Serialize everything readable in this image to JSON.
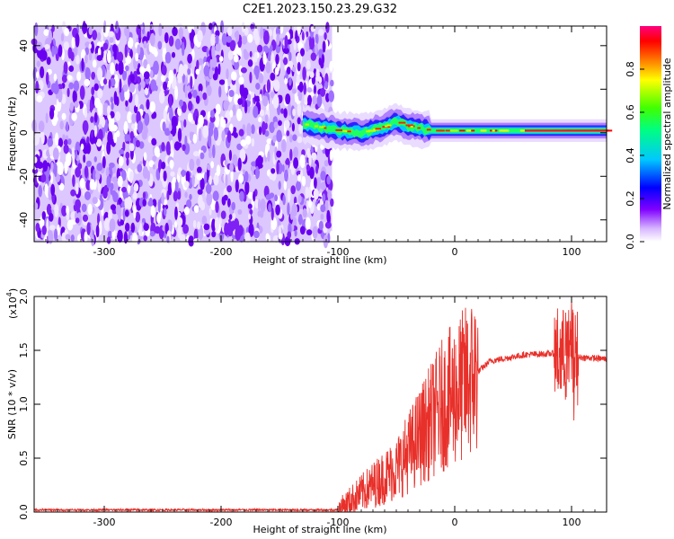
{
  "title": "C2E1.2023.150.23.29.G32",
  "colors": {
    "snr_line": "#e8302a",
    "noise_purple": "#6a00f0",
    "colorbar": [
      "#ffffff",
      "#8000ff",
      "#0000ff",
      "#00c8ff",
      "#00ff60",
      "#c8ff00",
      "#ff0000",
      "#ff0080"
    ]
  },
  "chart_data": [
    {
      "type": "heatmap",
      "name": "spectrogram",
      "xlabel": "Height of straight line (km)",
      "ylabel": "Frequency (Hz)",
      "xlim": [
        -360,
        130
      ],
      "ylim": [
        -50,
        49
      ],
      "xticks": [
        -300,
        -200,
        -100,
        0,
        100
      ],
      "yticks": [
        -40,
        -20,
        0,
        20,
        40
      ],
      "xtick_labels": [
        "-300",
        "-200",
        "-100",
        "0",
        "100"
      ],
      "ytick_labels": [
        "-40",
        "-20",
        "0",
        "20",
        "40"
      ],
      "noise_region_x": [
        -360,
        -105
      ],
      "signal_start_x": -130,
      "signal_path": [
        {
          "x": -130,
          "y": 4
        },
        {
          "x": -110,
          "y": 2
        },
        {
          "x": -100,
          "y": 1
        },
        {
          "x": -80,
          "y": 0
        },
        {
          "x": -60,
          "y": 3
        },
        {
          "x": -50,
          "y": 5
        },
        {
          "x": -40,
          "y": 3
        },
        {
          "x": -30,
          "y": 2
        },
        {
          "x": -20,
          "y": 1
        },
        {
          "x": 0,
          "y": 1
        },
        {
          "x": 40,
          "y": 1
        },
        {
          "x": 80,
          "y": 1
        },
        {
          "x": 130,
          "y": 1
        }
      ],
      "colorbar": {
        "label": "Normalized spectral amplitude",
        "range": [
          0,
          1
        ],
        "ticks": [
          0.0,
          0.2,
          0.4,
          0.6,
          0.8
        ],
        "tick_labels": [
          "0.0",
          "0.2",
          "0.4",
          "0.6",
          "0.8"
        ]
      }
    },
    {
      "type": "line",
      "name": "snr",
      "xlabel": "Height of straight line (km)",
      "ylabel": "SNR (10 * v/v)",
      "yscale_label": "(x10",
      "yscale_exp": "4",
      "xlim": [
        -360,
        130
      ],
      "ylim": [
        0,
        2.0
      ],
      "xticks": [
        -300,
        -200,
        -100,
        0,
        100
      ],
      "yticks": [
        0.0,
        0.5,
        1.0,
        1.5,
        2.0
      ],
      "xtick_labels": [
        "-300",
        "-200",
        "-100",
        "0",
        "100"
      ],
      "ytick_labels": [
        "0.0",
        "0.5",
        "1.0",
        "1.5",
        "2.0"
      ],
      "trend": [
        {
          "x": -360,
          "y": 0.02
        },
        {
          "x": -100,
          "y": 0.02
        },
        {
          "x": -90,
          "y": 0.1
        },
        {
          "x": -70,
          "y": 0.25
        },
        {
          "x": -50,
          "y": 0.4
        },
        {
          "x": -30,
          "y": 0.7
        },
        {
          "x": -10,
          "y": 1.0
        },
        {
          "x": 10,
          "y": 1.2
        },
        {
          "x": 30,
          "y": 1.4
        },
        {
          "x": 60,
          "y": 1.46
        },
        {
          "x": 85,
          "y": 1.47
        },
        {
          "x": 100,
          "y": 1.44
        },
        {
          "x": 130,
          "y": 1.42
        }
      ],
      "spikes": [
        {
          "x": 95,
          "y": 1.85
        },
        {
          "x": 100,
          "y": 2.0
        },
        {
          "x": 102,
          "y": 0.85
        }
      ]
    }
  ]
}
